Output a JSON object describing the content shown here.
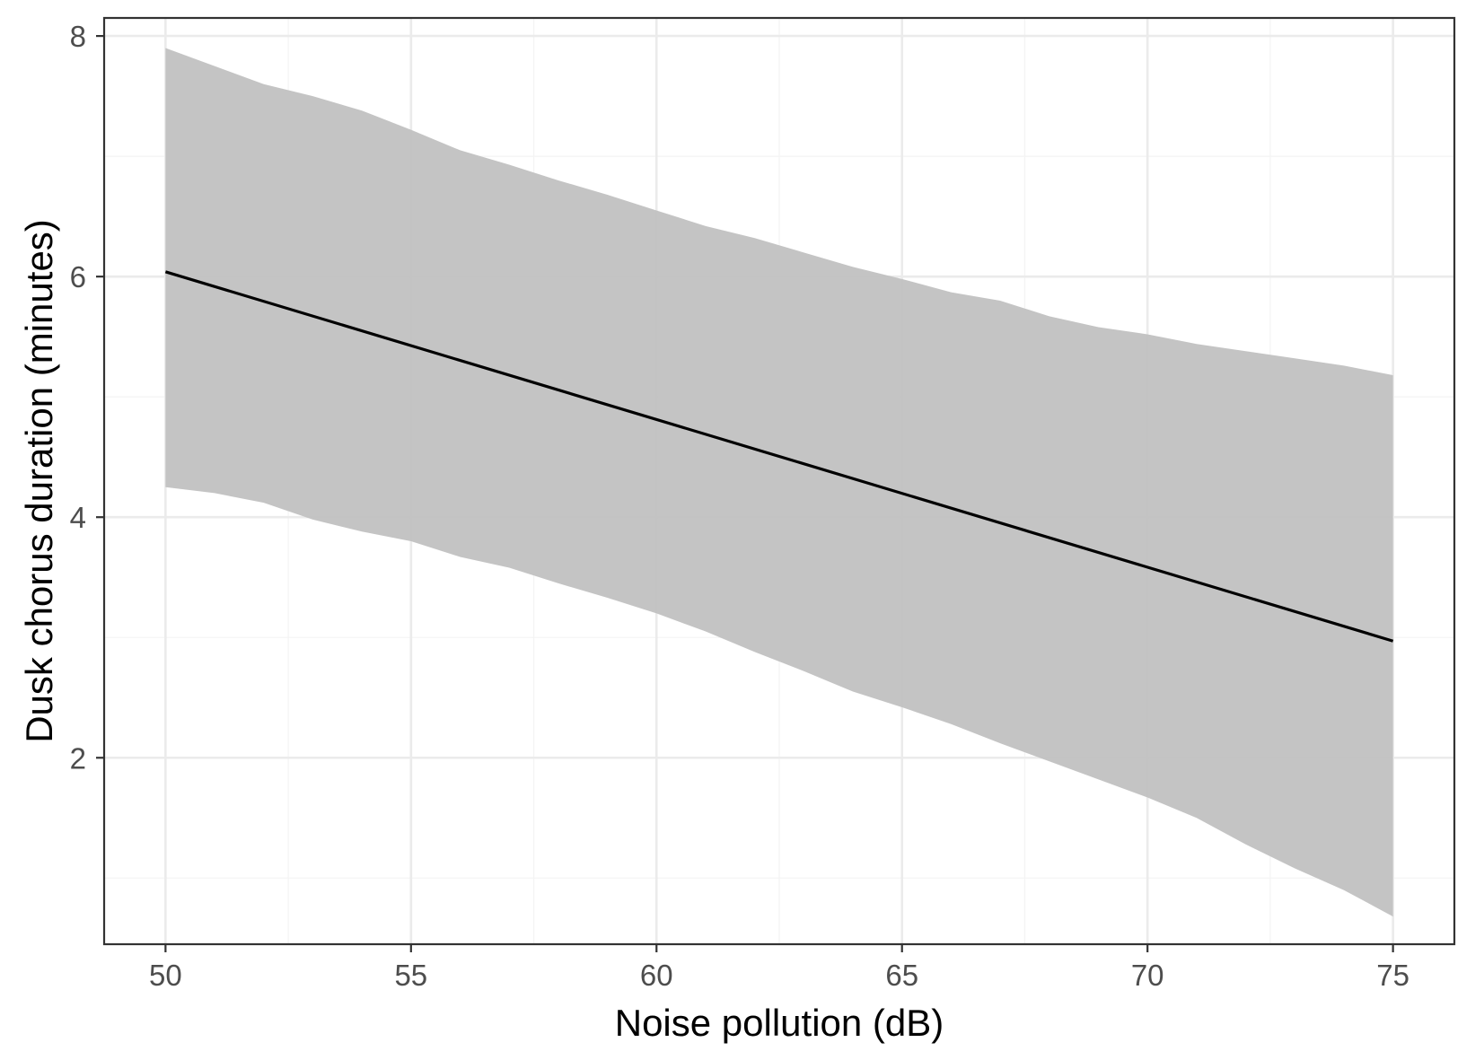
{
  "chart_data": {
    "type": "line",
    "xlabel": "Noise pollution (dB)",
    "ylabel": "Dusk chorus duration (minutes)",
    "xlim": [
      48.75,
      76.25
    ],
    "ylim": [
      0.45,
      8.15
    ],
    "x_ticks": [
      50,
      55,
      60,
      65,
      70,
      75
    ],
    "x_tick_labels": [
      "50",
      "55",
      "60",
      "65",
      "70",
      "75"
    ],
    "x_minor_ticks": [
      52.5,
      57.5,
      62.5,
      67.5,
      72.5
    ],
    "y_ticks": [
      2,
      4,
      6,
      8
    ],
    "y_tick_labels": [
      "2",
      "4",
      "6",
      "8"
    ],
    "y_minor_ticks": [
      1,
      3,
      5,
      7
    ],
    "grid": true,
    "theme": "bw",
    "series": [
      {
        "kind": "fit",
        "x": [
          50,
          75
        ],
        "y": [
          6.04,
          2.97
        ],
        "color": "#000000"
      },
      {
        "kind": "ribbon",
        "x": [
          50,
          51,
          52,
          53,
          54,
          55,
          56,
          57,
          58,
          59,
          60,
          61,
          62,
          63,
          64,
          65,
          66,
          67,
          68,
          69,
          70,
          71,
          72,
          73,
          74,
          75
        ],
        "upper": [
          7.9,
          7.75,
          7.6,
          7.5,
          7.38,
          7.22,
          7.05,
          6.93,
          6.8,
          6.68,
          6.55,
          6.42,
          6.32,
          6.2,
          6.08,
          5.98,
          5.87,
          5.8,
          5.67,
          5.58,
          5.52,
          5.44,
          5.38,
          5.32,
          5.26,
          5.18
        ],
        "lower": [
          4.25,
          4.2,
          4.12,
          3.98,
          3.88,
          3.8,
          3.67,
          3.58,
          3.45,
          3.33,
          3.2,
          3.05,
          2.88,
          2.72,
          2.55,
          2.42,
          2.28,
          2.12,
          1.97,
          1.82,
          1.67,
          1.5,
          1.28,
          1.08,
          0.9,
          0.68
        ],
        "color": "#bfbfbf"
      }
    ]
  },
  "colors": {
    "background": "#ffffff",
    "panel_border": "#333333",
    "grid_major": "#ebebeb",
    "grid_minor": "#f4f4f4",
    "ribbon": "#bfbfbf",
    "line": "#000000",
    "tick_text": "#4d4d4d"
  }
}
